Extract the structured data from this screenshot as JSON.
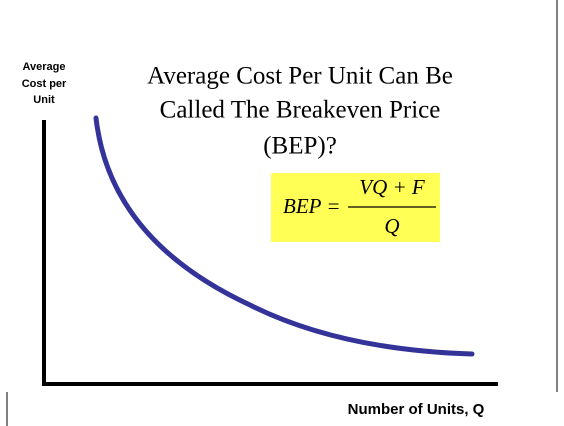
{
  "title": {
    "lines": [
      "Average Cost Per Unit Can Be",
      "Called The Breakeven Price",
      "(BEP)?"
    ]
  },
  "y_axis_label": {
    "lines": [
      "Average",
      "Cost per",
      "Unit"
    ]
  },
  "x_axis_label": "Number of Units, Q",
  "formula": {
    "lhs": "BEP =",
    "numerator": "VQ + F",
    "denominator": "Q"
  }
}
